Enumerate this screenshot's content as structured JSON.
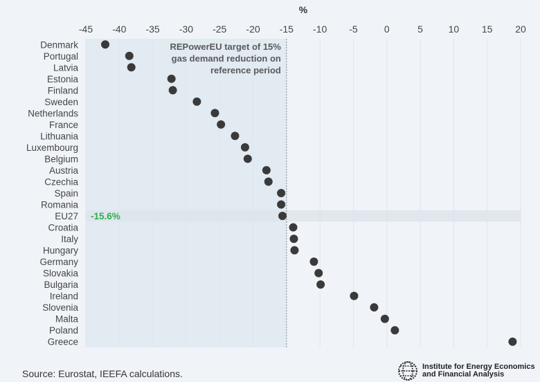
{
  "chart_data": {
    "type": "scatter",
    "title": "",
    "xlabel": "%",
    "ylabel": "",
    "xlim": [
      -45,
      20
    ],
    "xticks": [
      -45,
      -40,
      -35,
      -30,
      -25,
      -20,
      -15,
      -10,
      -5,
      0,
      5,
      10,
      15,
      20
    ],
    "grid": true,
    "categories": [
      "Denmark",
      "Portugal",
      "Latvia",
      "Estonia",
      "Finland",
      "Sweden",
      "Netherlands",
      "France",
      "Lithuania",
      "Luxembourg",
      "Belgium",
      "Austria",
      "Czechia",
      "Spain",
      "Romania",
      "EU27",
      "Croatia",
      "Italy",
      "Hungary",
      "Germany",
      "Slovakia",
      "Bulgaria",
      "Ireland",
      "Slovenia",
      "Malta",
      "Poland",
      "Greece"
    ],
    "values": [
      -42.1,
      -38.5,
      -38.2,
      -32.2,
      -32.0,
      -28.4,
      -25.7,
      -24.8,
      -22.7,
      -21.2,
      -20.8,
      -18.0,
      -17.7,
      -15.8,
      -15.8,
      -15.6,
      -14.0,
      -13.9,
      -13.8,
      -10.9,
      -10.2,
      -9.9,
      -4.9,
      -1.9,
      -0.3,
      1.2,
      18.8
    ],
    "highlight_category": "EU27",
    "highlight_label": "-15.6%",
    "highlight_color": "#2bb04a",
    "target_line": -15,
    "target_annotation": [
      "REPowerEU target of 15%",
      "gas demand reduction on",
      "reference period"
    ],
    "dot_color": "#3a3a3a",
    "shade_color": "#e2eaf2"
  },
  "footer": {
    "source": "Source: Eurostat, IEEFA calculations.",
    "org_line1": "Institute for Energy Economics",
    "org_line2": "and Financial Analysis"
  }
}
